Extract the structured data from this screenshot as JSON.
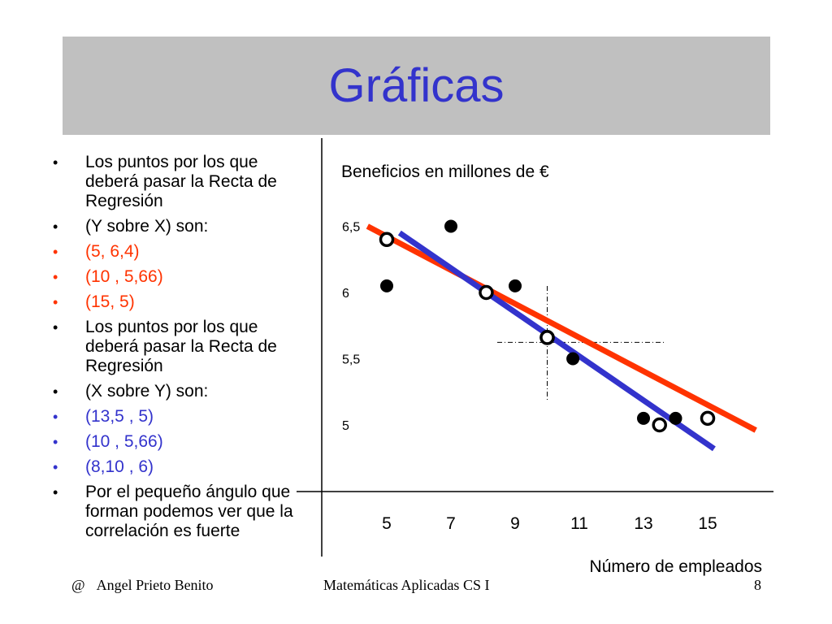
{
  "slide": {
    "title": "Gráficas",
    "bullets": [
      {
        "text": "Los puntos por los que deberá pasar la Recta de Regresión",
        "color": "black"
      },
      {
        "text": "(Y sobre X) son:",
        "color": "black"
      },
      {
        "text": "(5,  6,4)",
        "color": "red"
      },
      {
        "text": "(10 , 5,66)",
        "color": "red"
      },
      {
        "text": "(15, 5)",
        "color": "red"
      },
      {
        "text": "Los puntos por los que deberá pasar la Recta de Regresión",
        "color": "black"
      },
      {
        "text": "(X sobre Y) son:",
        "color": "black"
      },
      {
        "text": "(13,5 ,  5)",
        "color": "blue"
      },
      {
        "text": "(10 , 5,66)",
        "color": "blue"
      },
      {
        "text": "(8,10 , 6)",
        "color": "blue"
      },
      {
        "text": "Por el pequeño ángulo que forman podemos ver que la correlación es fuerte",
        "color": "black"
      }
    ],
    "bullet_symbol": "•",
    "footer": {
      "at": "@",
      "author": "Angel Prieto Benito",
      "course": "Matemáticas Aplicadas CS I",
      "page": "8"
    }
  },
  "chart_data": {
    "type": "scatter",
    "title": "Beneficios en millones de €",
    "xlabel": "Número de empleados",
    "ylabel": "",
    "x_ticks": [
      5,
      7,
      9,
      11,
      13,
      15
    ],
    "y_ticks": [
      "5",
      "5,5",
      "6",
      "6,5"
    ],
    "y_tick_values": [
      5,
      5.5,
      6,
      6.5
    ],
    "xlim": [
      4,
      16
    ],
    "ylim": [
      4.55,
      6.6
    ],
    "grid": false,
    "series": [
      {
        "kind": "observed",
        "x": [
          5,
          7,
          9,
          10.8,
          13,
          14
        ],
        "y": [
          6.05,
          6.5,
          6.05,
          5.5,
          5.05,
          5.05
        ]
      },
      {
        "kind": "regression-y-on-x",
        "color": "#ff3300",
        "x": [
          5,
          10,
          15
        ],
        "y": [
          6.4,
          5.66,
          5.05
        ]
      },
      {
        "kind": "regression-x-on-y",
        "color": "#3333cc",
        "x": [
          13.5,
          10,
          8.1
        ],
        "y": [
          5.0,
          5.66,
          6.0
        ]
      }
    ],
    "regression_lines": [
      {
        "name": "Y sobre X",
        "color": "#ff3300",
        "x": [
          4.4,
          16.5
        ],
        "y": [
          6.5,
          4.96
        ]
      },
      {
        "name": "X sobre Y",
        "color": "#3333cc",
        "x": [
          5.4,
          15.2
        ],
        "y": [
          6.45,
          4.82
        ]
      }
    ],
    "mean_point": {
      "x": 10,
      "y": 5.66
    }
  }
}
